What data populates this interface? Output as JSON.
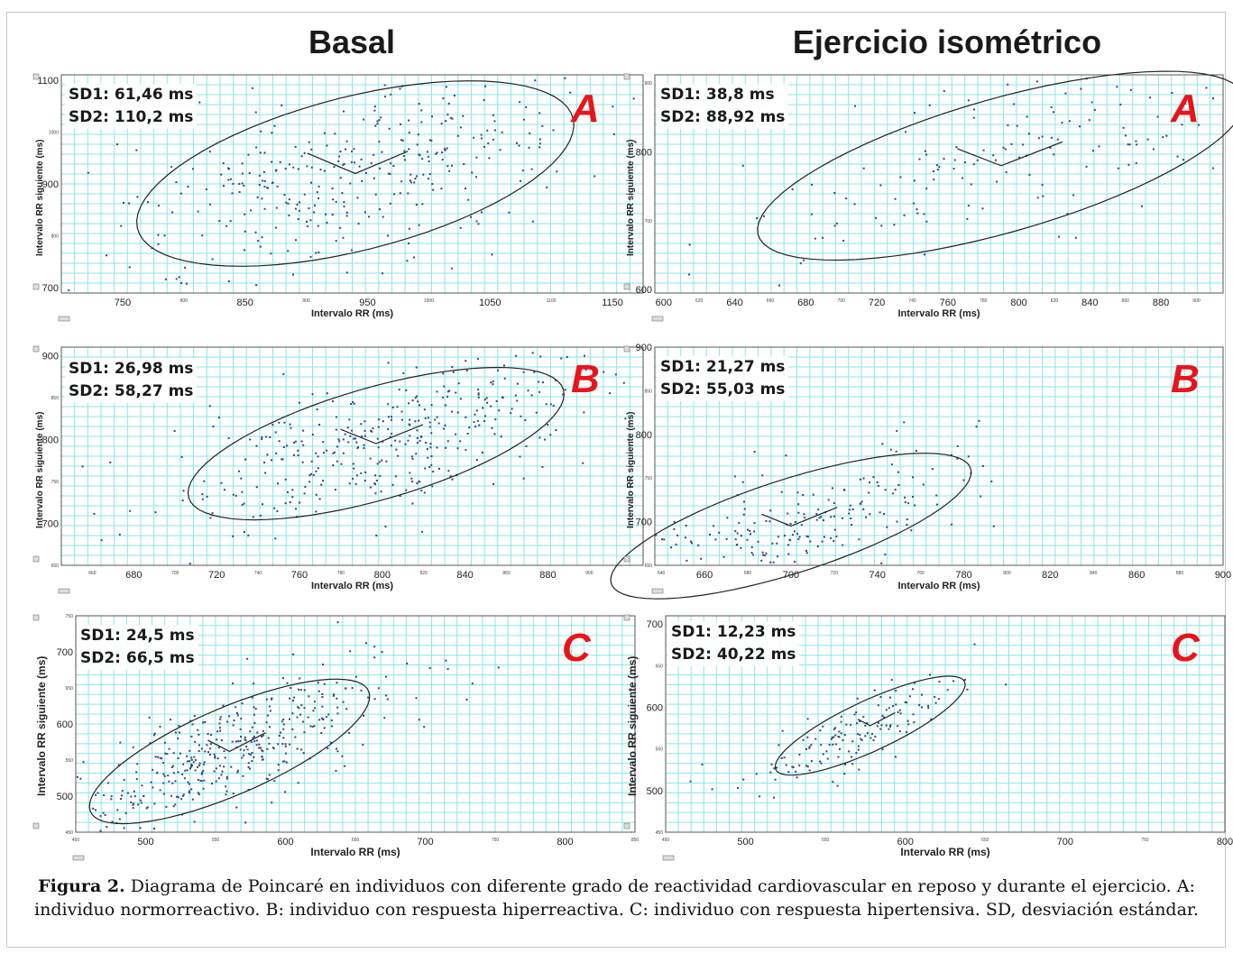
{
  "titles": {
    "left": "Basal",
    "right": "Ejercicio isométrico"
  },
  "caption": {
    "label": "Figura 2.",
    "text": " Diagrama de Poincaré en individuos con diferente grado de reactividad cardiovascular en reposo y durante el ejercicio. A: individuo normorreactivo. B: individuo con respuesta hiperreactiva. C: individuo con respuesta hipertensiva. SD, desviación estándar."
  },
  "colors": {
    "grid": "#8ce6e6",
    "points": "#334477",
    "letter": "#e8141b"
  },
  "chart_data": [
    {
      "type": "scatter",
      "id": "basal-A",
      "letter": "A",
      "sd1": "SD1: 61,46 ms",
      "sd2": "SD2: 110,2 ms",
      "xlabel": "Intervalo RR (ms)",
      "ylabel": "Intervalo RR siguiente (ms)",
      "xlim": [
        700,
        1175
      ],
      "ylim": [
        690,
        1110
      ],
      "xticks": [
        750,
        850,
        950,
        1050,
        1150
      ],
      "xticks_small": [
        800,
        900,
        1000,
        1100
      ],
      "yticks": [
        700,
        900,
        1100
      ],
      "yticks_small": [
        800,
        1000
      ],
      "ellipse": {
        "cx": 940,
        "cy": 920,
        "sd1": 61.46,
        "sd2": 110.2
      },
      "cluster": {
        "cx": 940,
        "cy": 920,
        "n": 360,
        "seed": 11,
        "tail": 60
      },
      "grid": true
    },
    {
      "type": "scatter",
      "id": "iso-A",
      "letter": "A",
      "sd1": "SD1: 38,8 ms",
      "sd2": "SD2: 88,92 ms",
      "xlabel": "Intervalo RR (ms)",
      "ylabel": "Intervalo RR siguiente (ms)",
      "xlim": [
        595,
        915
      ],
      "ylim": [
        595,
        912
      ],
      "xticks": [
        600,
        640,
        680,
        720,
        760,
        800,
        840,
        880
      ],
      "xticks_small": [
        620,
        660,
        700,
        740,
        780,
        820,
        860,
        900
      ],
      "yticks": [
        600,
        800
      ],
      "yticks_small": [
        700,
        900
      ],
      "ellipse": {
        "cx": 790,
        "cy": 780,
        "sd1": 38.8,
        "sd2": 88.92
      },
      "cluster": {
        "cx": 795,
        "cy": 785,
        "n": 160,
        "seed": 23,
        "tail": 30
      },
      "grid": true
    },
    {
      "type": "scatter",
      "id": "basal-B",
      "letter": "B",
      "sd1": "SD1: 26,98 ms",
      "sd2": "SD2: 58,27 ms",
      "xlabel": "Intervalo RR (ms)",
      "ylabel": "Intervalo RR siguiente (ms)",
      "xlim": [
        645,
        926
      ],
      "ylim": [
        650,
        910
      ],
      "xticks": [
        680,
        720,
        760,
        800,
        840,
        880
      ],
      "xticks_small": [
        660,
        700,
        740,
        780,
        820,
        860,
        900
      ],
      "yticks": [
        700,
        800,
        900
      ],
      "yticks_small": [
        650,
        750,
        850
      ],
      "ellipse": {
        "cx": 797,
        "cy": 795,
        "sd1": 26.98,
        "sd2": 58.27
      },
      "cluster": {
        "cx": 800,
        "cy": 800,
        "n": 380,
        "seed": 37,
        "tail": 40
      },
      "grid": true
    },
    {
      "type": "scatter",
      "id": "iso-B",
      "letter": "B",
      "sd1": "SD1: 21,27 ms",
      "sd2": "SD2: 55,03 ms",
      "xlabel": "Intervalo RR (ms)",
      "ylabel": "Intervalo RR siguiente (ms)",
      "xlim": [
        637,
        900
      ],
      "ylim": [
        650,
        900
      ],
      "xticks": [
        660,
        700,
        740,
        780,
        820,
        860,
        900
      ],
      "xticks_small": [
        640,
        680,
        720,
        760,
        800,
        840,
        880
      ],
      "yticks": [
        700,
        800,
        900
      ],
      "yticks_small": [
        650,
        750,
        850
      ],
      "ellipse": {
        "cx": 700,
        "cy": 695,
        "sd1": 21.27,
        "sd2": 55.03
      },
      "cluster": {
        "cx": 695,
        "cy": 690,
        "n": 220,
        "seed": 51,
        "tail": 35
      },
      "grid": true
    },
    {
      "type": "scatter",
      "id": "basal-C",
      "letter": "C",
      "sd1": "SD1: 24,5 ms",
      "sd2": "SD2: 66,5 ms",
      "xlabel": "Intervalo RR (ms)",
      "ylabel": "Intervalo RR siguiente (ms)",
      "xlim": [
        450,
        850
      ],
      "ylim": [
        450,
        750
      ],
      "xticks": [
        500,
        600,
        700,
        800
      ],
      "xticks_small": [
        450,
        550,
        650,
        750,
        850
      ],
      "yticks": [
        500,
        600,
        700
      ],
      "yticks_small": [
        450,
        550,
        650,
        750
      ],
      "ellipse": {
        "cx": 560,
        "cy": 562,
        "sd1": 24.5,
        "sd2": 66.5
      },
      "cluster": {
        "cx": 555,
        "cy": 555,
        "n": 420,
        "seed": 67,
        "tail": 50
      },
      "grid": true
    },
    {
      "type": "scatter",
      "id": "iso-C",
      "letter": "C",
      "sd1": "SD1: 12,23 ms",
      "sd2": "SD2: 40,22 ms",
      "xlabel": "Intervalo RR (ms)",
      "ylabel": "Intervalo RR siguiente (ms)",
      "xlim": [
        450,
        800
      ],
      "ylim": [
        450,
        710
      ],
      "xticks": [
        500,
        600,
        700,
        800
      ],
      "xticks_small": [
        450,
        550,
        650,
        750
      ],
      "yticks": [
        500,
        600,
        700
      ],
      "yticks_small": [
        450,
        550,
        650
      ],
      "ellipse": {
        "cx": 578,
        "cy": 578,
        "sd1": 12.23,
        "sd2": 40.22
      },
      "cluster": {
        "cx": 575,
        "cy": 575,
        "n": 150,
        "seed": 79,
        "tail": 25
      },
      "grid": true
    }
  ]
}
